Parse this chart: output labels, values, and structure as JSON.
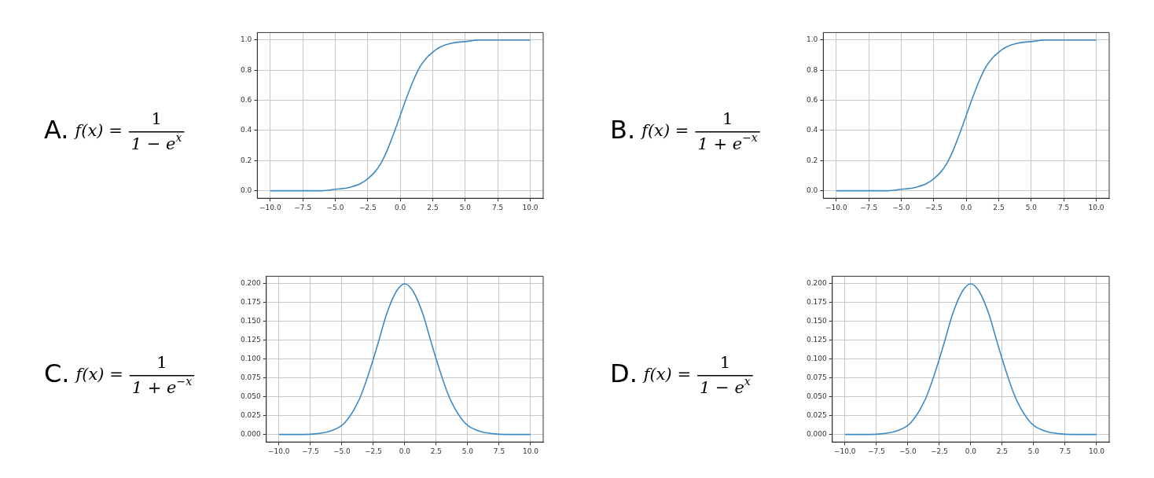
{
  "chart_data": [
    {
      "type": "line",
      "annotations": [
        "A.",
        "f(x) =",
        "1",
        "1 − e$^{x}$"
      ],
      "x": [
        -10,
        -8,
        -6,
        -5,
        -4,
        -3,
        -2.5,
        -2,
        -1.5,
        -1,
        -0.5,
        0,
        0.5,
        1,
        1.5,
        2,
        2.5,
        3,
        4,
        5,
        6,
        8,
        10
      ],
      "series": [
        {
          "color": "#3d8ac4",
          "values": [
            0.0,
            0.0,
            0.0,
            0.01,
            0.02,
            0.05,
            0.08,
            0.12,
            0.18,
            0.27,
            0.38,
            0.5,
            0.62,
            0.73,
            0.82,
            0.88,
            0.92,
            0.95,
            0.98,
            0.99,
            1.0,
            1.0,
            1.0
          ]
        }
      ],
      "xlim": [
        -11,
        11
      ],
      "ylim": [
        -0.05,
        1.05
      ],
      "xticks": [
        {
          "value": -10,
          "label": "−10.0"
        },
        {
          "value": -7.5,
          "label": "−7.5"
        },
        {
          "value": -5,
          "label": "−5.0"
        },
        {
          "value": -2.5,
          "label": "−2.5"
        },
        {
          "value": 0,
          "label": "0.0"
        },
        {
          "value": 2.5,
          "label": "2.5"
        },
        {
          "value": 5,
          "label": "5.0"
        },
        {
          "value": 7.5,
          "label": "7.5"
        },
        {
          "value": 10,
          "label": "10.0"
        }
      ],
      "yticks": [
        {
          "value": 0,
          "label": "0.0"
        },
        0.2,
        0.4,
        0.6,
        0.8,
        {
          "value": 1,
          "label": "1.0"
        }
      ],
      "grid": true,
      "marker": "none"
    },
    {
      "type": "line",
      "annotations": [
        "B.",
        "f(x) =",
        "1",
        "1 + e$^{−x}$"
      ],
      "x": [
        -10,
        -8,
        -6,
        -5,
        -4,
        -3,
        -2.5,
        -2,
        -1.5,
        -1,
        -0.5,
        0,
        0.5,
        1,
        1.5,
        2,
        2.5,
        3,
        4,
        5,
        6,
        8,
        10
      ],
      "series": [
        {
          "color": "#3d8ac4",
          "values": [
            0.0,
            0.0,
            0.0,
            0.01,
            0.02,
            0.05,
            0.08,
            0.12,
            0.18,
            0.27,
            0.38,
            0.5,
            0.62,
            0.73,
            0.82,
            0.88,
            0.92,
            0.95,
            0.98,
            0.99,
            1.0,
            1.0,
            1.0
          ]
        }
      ],
      "xlim": [
        -11,
        11
      ],
      "ylim": [
        -0.05,
        1.05
      ],
      "xticks": [
        {
          "value": -10,
          "label": "−10.0"
        },
        {
          "value": -7.5,
          "label": "−7.5"
        },
        {
          "value": -5,
          "label": "−5.0"
        },
        {
          "value": -2.5,
          "label": "−2.5"
        },
        {
          "value": 0,
          "label": "0.0"
        },
        {
          "value": 2.5,
          "label": "2.5"
        },
        {
          "value": 5,
          "label": "5.0"
        },
        {
          "value": 7.5,
          "label": "7.5"
        },
        {
          "value": 10,
          "label": "10.0"
        }
      ],
      "yticks": [
        {
          "value": 0,
          "label": "0.0"
        },
        0.2,
        0.4,
        0.6,
        0.8,
        {
          "value": 1,
          "label": "1.0"
        }
      ],
      "grid": true,
      "marker": "none"
    },
    {
      "type": "line",
      "annotations": [
        "C.",
        "f(x) =",
        "1",
        "1 + e$^{−x}$"
      ],
      "x": [
        -10,
        -8,
        -7,
        -6,
        -5,
        -4.5,
        -4,
        -3.5,
        -3,
        -2.5,
        -2,
        -1.5,
        -1,
        -0.5,
        0,
        0.5,
        1,
        1.5,
        2,
        2.5,
        3,
        3.5,
        4,
        4.5,
        5,
        6,
        7,
        8,
        10
      ],
      "series": [
        {
          "color": "#3d8ac4",
          "values": [
            0.0,
            0.0,
            0.001,
            0.004,
            0.012,
            0.021,
            0.034,
            0.051,
            0.074,
            0.1,
            0.128,
            0.157,
            0.179,
            0.194,
            0.2,
            0.194,
            0.179,
            0.157,
            0.128,
            0.1,
            0.074,
            0.051,
            0.034,
            0.021,
            0.012,
            0.004,
            0.001,
            0.0,
            0.0
          ]
        }
      ],
      "xlim": [
        -11,
        11
      ],
      "ylim": [
        -0.01,
        0.21
      ],
      "xticks": [
        {
          "value": -10,
          "label": "−10.0"
        },
        {
          "value": -7.5,
          "label": "−7.5"
        },
        {
          "value": -5,
          "label": "−5.0"
        },
        {
          "value": -2.5,
          "label": "−2.5"
        },
        {
          "value": 0,
          "label": "0.0"
        },
        {
          "value": 2.5,
          "label": "2.5"
        },
        {
          "value": 5,
          "label": "5.0"
        },
        {
          "value": 7.5,
          "label": "7.5"
        },
        {
          "value": 10,
          "label": "10.0"
        }
      ],
      "yticks": [
        {
          "value": 0,
          "label": "0.000"
        },
        0.025,
        {
          "value": 0.05,
          "label": "0.050"
        },
        0.075,
        {
          "value": 0.1,
          "label": "0.100"
        },
        0.125,
        {
          "value": 0.15,
          "label": "0.150"
        },
        0.175,
        {
          "value": 0.2,
          "label": "0.200"
        }
      ],
      "grid": true,
      "marker": "none"
    },
    {
      "type": "line",
      "annotations": [
        "D.",
        "f(x) =",
        "1",
        "1 − e$^{x}$"
      ],
      "x": [
        -10,
        -8,
        -7,
        -6,
        -5,
        -4.5,
        -4,
        -3.5,
        -3,
        -2.5,
        -2,
        -1.5,
        -1,
        -0.5,
        0,
        0.5,
        1,
        1.5,
        2,
        2.5,
        3,
        3.5,
        4,
        4.5,
        5,
        6,
        7,
        8,
        10
      ],
      "series": [
        {
          "color": "#3d8ac4",
          "values": [
            0.0,
            0.0,
            0.001,
            0.004,
            0.012,
            0.021,
            0.034,
            0.051,
            0.074,
            0.1,
            0.128,
            0.157,
            0.179,
            0.194,
            0.2,
            0.194,
            0.179,
            0.157,
            0.128,
            0.1,
            0.074,
            0.051,
            0.034,
            0.021,
            0.012,
            0.004,
            0.001,
            0.0,
            0.0
          ]
        }
      ],
      "xlim": [
        -11,
        11
      ],
      "ylim": [
        -0.01,
        0.21
      ],
      "xticks": [
        {
          "value": -10,
          "label": "−10.0"
        },
        {
          "value": -7.5,
          "label": "−7.5"
        },
        {
          "value": -5,
          "label": "−5.0"
        },
        {
          "value": -2.5,
          "label": "−2.5"
        },
        {
          "value": 0,
          "label": "0.0"
        },
        {
          "value": 2.5,
          "label": "2.5"
        },
        {
          "value": 5,
          "label": "5.0"
        },
        {
          "value": 7.5,
          "label": "7.5"
        },
        {
          "value": 10,
          "label": "10.0"
        }
      ],
      "yticks": [
        {
          "value": 0,
          "label": "0.000"
        },
        0.025,
        {
          "value": 0.05,
          "label": "0.050"
        },
        0.075,
        {
          "value": 0.1,
          "label": "0.100"
        },
        0.125,
        {
          "value": 0.15,
          "label": "0.150"
        },
        0.175,
        {
          "value": 0.2,
          "label": "0.200"
        }
      ],
      "grid": true,
      "marker": "none"
    }
  ]
}
